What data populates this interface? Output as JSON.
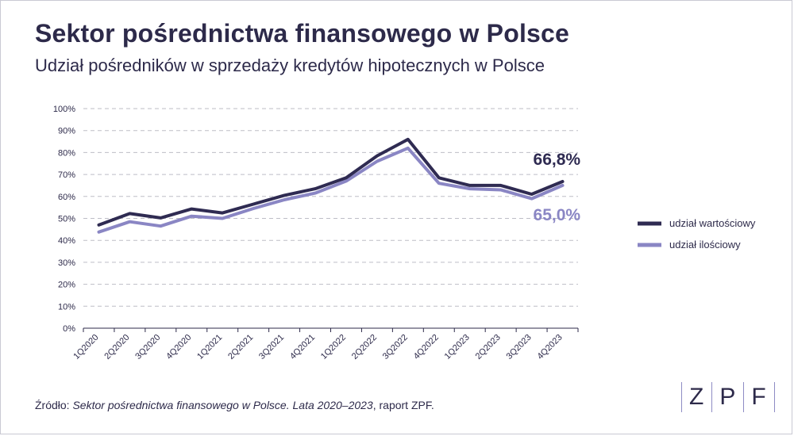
{
  "header": {
    "title": "Sektor pośrednictwa finansowego w Polsce",
    "subtitle": "Udział pośredników w sprzedaży kredytów hipotecznych w Polsce"
  },
  "chart_data": {
    "type": "line",
    "categories": [
      "1Q2020",
      "2Q2020",
      "3Q2020",
      "4Q2020",
      "1Q2021",
      "2Q2021",
      "3Q2021",
      "4Q2021",
      "1Q2022",
      "2Q2022",
      "3Q2022",
      "4Q2022",
      "1Q2023",
      "2Q2023",
      "3Q2023",
      "4Q2023"
    ],
    "y_ticks": [
      "0%",
      "10%",
      "20%",
      "30%",
      "40%",
      "50%",
      "60%",
      "70%",
      "80%",
      "90%",
      "100%"
    ],
    "ylim": [
      0,
      100
    ],
    "grid": true,
    "legend_position": "right",
    "series": [
      {
        "name": "udział wartościowy",
        "color": "#2f2b52",
        "values": [
          47.0,
          52.2,
          50.2,
          54.3,
          52.5,
          56.5,
          60.5,
          63.5,
          68.5,
          78.5,
          86.0,
          68.5,
          65.0,
          65.0,
          61.0,
          66.8
        ]
      },
      {
        "name": "udział ilościowy",
        "color": "#8a86c4",
        "values": [
          43.8,
          48.5,
          46.5,
          51.0,
          50.0,
          54.5,
          58.5,
          61.5,
          67.0,
          76.0,
          82.0,
          66.0,
          63.5,
          63.0,
          59.0,
          65.0
        ]
      }
    ],
    "annotations": [
      {
        "text": "66,8%",
        "color": "#2f2b52"
      },
      {
        "text": "65,0%",
        "color": "#8a86c4"
      }
    ]
  },
  "source": {
    "prefix": "Źródło: ",
    "title": "Sektor pośrednictwa finansowego w Polsce. Lata 2020–2023",
    "suffix": ", raport ZPF."
  },
  "logo": {
    "letters": [
      "Z",
      "P",
      "F"
    ]
  }
}
